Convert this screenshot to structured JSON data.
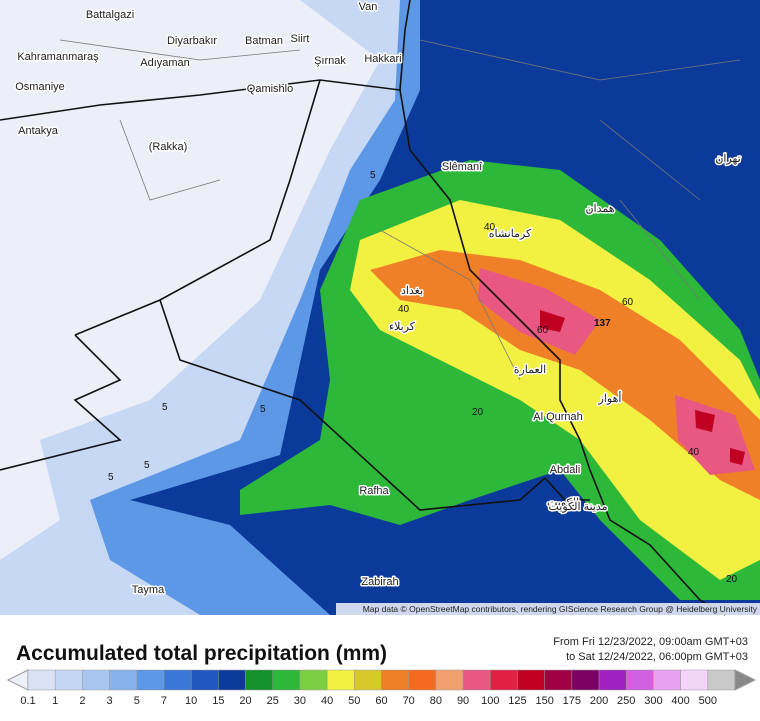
{
  "map": {
    "attribution": "Map data © OpenStreetMap contributors, rendering GIScience Research Group @ Heidelberg University",
    "places": [
      "Battalgazi",
      "Van",
      "Diyarbakır",
      "Batman",
      "Siirt",
      "Kahramanmaraş",
      "Adıyaman",
      "Şırnak",
      "Hakkari",
      "Osmaniye",
      "Qamishlo",
      "Antakya",
      "(Rakka)",
      "Slêmanî",
      "Al Qurnah",
      "Abdali",
      "Rafha",
      "Zabirah",
      "Tayma",
      "بغداد",
      "كربلاء",
      "الكويت",
      "مدينة الكويت",
      "العمارة",
      "أهواز",
      "كرمانشاه",
      "همدان",
      "تهران"
    ],
    "contour_labels": [
      "5",
      "5",
      "5",
      "5",
      "5",
      "20",
      "40",
      "40",
      "60",
      "60",
      "137",
      "40",
      "20"
    ]
  },
  "legend": {
    "title": "Accumulated total precipitation (mm)",
    "from": "From Fri 12/23/2022, 09:00am GMT+03",
    "to": "to Sat 12/24/2022, 06:00pm GMT+03",
    "levels": [
      {
        "value": 0.1,
        "color": "#d8e2f4"
      },
      {
        "value": 1,
        "color": "#c4d6f4"
      },
      {
        "value": 2,
        "color": "#a8c6f0"
      },
      {
        "value": 3,
        "color": "#88b2ec"
      },
      {
        "value": 5,
        "color": "#5c98e6"
      },
      {
        "value": 7,
        "color": "#3a78d8"
      },
      {
        "value": 10,
        "color": "#2058c0"
      },
      {
        "value": 15,
        "color": "#0c3a9a"
      },
      {
        "value": 20,
        "color": "#14902a"
      },
      {
        "value": 25,
        "color": "#2db83a"
      },
      {
        "value": 30,
        "color": "#7ccf40"
      },
      {
        "value": 40,
        "color": "#f2f040"
      },
      {
        "value": 50,
        "color": "#d8c828"
      },
      {
        "value": 60,
        "color": "#f08028"
      },
      {
        "value": 70,
        "color": "#f46a1e"
      },
      {
        "value": 80,
        "color": "#f2a070"
      },
      {
        "value": 90,
        "color": "#e85882"
      },
      {
        "value": 100,
        "color": "#e02044"
      },
      {
        "value": 125,
        "color": "#c00022"
      },
      {
        "value": 150,
        "color": "#a00044"
      },
      {
        "value": 175,
        "color": "#7a0062"
      },
      {
        "value": 200,
        "color": "#a020c0"
      },
      {
        "value": 250,
        "color": "#d060e0"
      },
      {
        "value": 300,
        "color": "#e8a0f0"
      },
      {
        "value": 400,
        "color": "#f4d4f8"
      },
      {
        "value": 500,
        "color": "#c8c8c8"
      }
    ]
  }
}
